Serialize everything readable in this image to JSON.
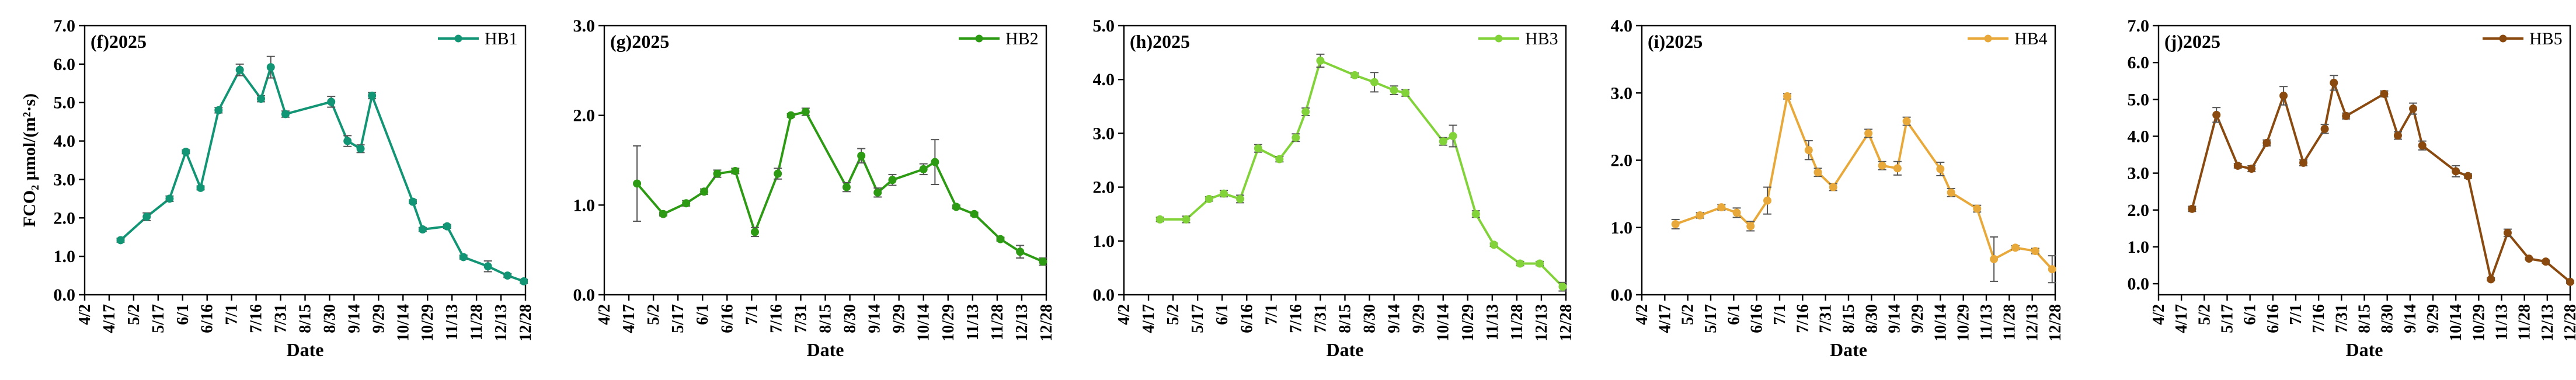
{
  "chart_data": [
    {
      "type": "line",
      "panel_label": "(f)2025",
      "ylabel": "FCO₂ μmol/(m²·s)",
      "xlabel": "Date",
      "x_ticks": [
        "4/2",
        "4/17",
        "5/2",
        "5/17",
        "6/1",
        "6/16",
        "7/1",
        "7/16",
        "7/31",
        "8/15",
        "8/30",
        "9/14",
        "9/29",
        "10/14",
        "10/29",
        "11/13",
        "11/28",
        "12/13",
        "12/28"
      ],
      "ylim": [
        0,
        7
      ],
      "y_ticks": [
        "0.0",
        "1.0",
        "2.0",
        "3.0",
        "4.0",
        "5.0",
        "6.0",
        "7.0"
      ],
      "legend_position": "top-right",
      "series": [
        {
          "name": "HB1",
          "color": "#119574",
          "points": [
            {
              "x": "4/24",
              "y": 1.42,
              "err": 0.05
            },
            {
              "x": "5/10",
              "y": 2.03,
              "err": 0.1
            },
            {
              "x": "5/24",
              "y": 2.5,
              "err": 0.07
            },
            {
              "x": "6/3",
              "y": 3.72,
              "err": 0.05
            },
            {
              "x": "6/12",
              "y": 2.78,
              "err": 0.05
            },
            {
              "x": "6/23",
              "y": 4.8,
              "err": 0.07
            },
            {
              "x": "7/6",
              "y": 5.85,
              "err": 0.15
            },
            {
              "x": "7/19",
              "y": 5.1,
              "err": 0.08
            },
            {
              "x": "7/25",
              "y": 5.92,
              "err": 0.28
            },
            {
              "x": "8/3",
              "y": 4.7,
              "err": 0.08
            },
            {
              "x": "8/31",
              "y": 5.02,
              "err": 0.14
            },
            {
              "x": "9/10",
              "y": 4.0,
              "err": 0.14
            },
            {
              "x": "9/18",
              "y": 3.8,
              "err": 0.1
            },
            {
              "x": "9/25",
              "y": 5.18,
              "err": 0.08
            },
            {
              "x": "10/20",
              "y": 2.42,
              "err": 0.05
            },
            {
              "x": "10/26",
              "y": 1.7,
              "err": 0.05
            },
            {
              "x": "11/10",
              "y": 1.78,
              "err": 0.05
            },
            {
              "x": "11/20",
              "y": 0.98,
              "err": 0.05
            },
            {
              "x": "12/5",
              "y": 0.74,
              "err": 0.14
            },
            {
              "x": "12/17",
              "y": 0.5,
              "err": 0.05
            },
            {
              "x": "12/27",
              "y": 0.35,
              "err": 0.05
            }
          ]
        }
      ]
    },
    {
      "type": "line",
      "panel_label": "(g)2025",
      "xlabel": "Date",
      "x_ticks": [
        "4/2",
        "4/17",
        "5/2",
        "5/17",
        "6/1",
        "6/16",
        "7/1",
        "7/16",
        "7/31",
        "8/15",
        "8/30",
        "9/14",
        "9/29",
        "10/14",
        "10/29",
        "11/13",
        "11/28",
        "12/13",
        "12/28"
      ],
      "ylim": [
        0,
        3
      ],
      "y_ticks": [
        "0.0",
        "1.0",
        "2.0",
        "3.0"
      ],
      "legend_position": "top-right",
      "series": [
        {
          "name": "HB2",
          "color": "#2c9a12",
          "points": [
            {
              "x": "4/22",
              "y": 1.24,
              "err": 0.42
            },
            {
              "x": "5/8",
              "y": 0.9,
              "err": 0.02
            },
            {
              "x": "5/22",
              "y": 1.02,
              "err": 0.03
            },
            {
              "x": "6/2",
              "y": 1.15,
              "err": 0.03
            },
            {
              "x": "6/10",
              "y": 1.35,
              "err": 0.04
            },
            {
              "x": "6/21",
              "y": 1.38,
              "err": 0.03
            },
            {
              "x": "7/3",
              "y": 0.7,
              "err": 0.05
            },
            {
              "x": "7/17",
              "y": 1.35,
              "err": 0.06
            },
            {
              "x": "7/25",
              "y": 2.0,
              "err": 0.02
            },
            {
              "x": "8/3",
              "y": 2.04,
              "err": 0.04
            },
            {
              "x": "8/28",
              "y": 1.2,
              "err": 0.05
            },
            {
              "x": "9/6",
              "y": 1.55,
              "err": 0.08
            },
            {
              "x": "9/16",
              "y": 1.14,
              "err": 0.05
            },
            {
              "x": "9/25",
              "y": 1.28,
              "err": 0.06
            },
            {
              "x": "10/14",
              "y": 1.4,
              "err": 0.06
            },
            {
              "x": "10/21",
              "y": 1.48,
              "err": 0.25
            },
            {
              "x": "11/3",
              "y": 0.98,
              "err": 0.02
            },
            {
              "x": "11/14",
              "y": 0.9,
              "err": 0.02
            },
            {
              "x": "11/30",
              "y": 0.62,
              "err": 0.02
            },
            {
              "x": "12/12",
              "y": 0.48,
              "err": 0.07
            },
            {
              "x": "12/26",
              "y": 0.37,
              "err": 0.04
            }
          ]
        }
      ]
    },
    {
      "type": "line",
      "panel_label": "(h)2025",
      "xlabel": "Date",
      "x_ticks": [
        "4/2",
        "4/17",
        "5/2",
        "5/17",
        "6/1",
        "6/16",
        "7/1",
        "7/16",
        "7/31",
        "8/15",
        "8/30",
        "9/14",
        "9/29",
        "10/14",
        "10/29",
        "11/13",
        "11/28",
        "12/13",
        "12/28"
      ],
      "ylim": [
        0,
        5
      ],
      "y_ticks": [
        "0.0",
        "1.0",
        "2.0",
        "3.0",
        "4.0",
        "5.0"
      ],
      "legend_position": "top-right",
      "series": [
        {
          "name": "HB3",
          "color": "#82d33a",
          "points": [
            {
              "x": "4/24",
              "y": 1.4,
              "err": 0.04
            },
            {
              "x": "5/10",
              "y": 1.4,
              "err": 0.06
            },
            {
              "x": "5/24",
              "y": 1.78,
              "err": 0.04
            },
            {
              "x": "6/2",
              "y": 1.88,
              "err": 0.06
            },
            {
              "x": "6/12",
              "y": 1.78,
              "err": 0.07
            },
            {
              "x": "6/23",
              "y": 2.72,
              "err": 0.07
            },
            {
              "x": "7/6",
              "y": 2.52,
              "err": 0.05
            },
            {
              "x": "7/16",
              "y": 2.92,
              "err": 0.07
            },
            {
              "x": "7/22",
              "y": 3.4,
              "err": 0.07
            },
            {
              "x": "7/31",
              "y": 4.35,
              "err": 0.12
            },
            {
              "x": "8/21",
              "y": 4.08,
              "err": 0.04
            },
            {
              "x": "9/2",
              "y": 3.95,
              "err": 0.18
            },
            {
              "x": "9/14",
              "y": 3.8,
              "err": 0.08
            },
            {
              "x": "9/21",
              "y": 3.75,
              "err": 0.06
            },
            {
              "x": "10/14",
              "y": 2.85,
              "err": 0.07
            },
            {
              "x": "10/20",
              "y": 2.95,
              "err": 0.2
            },
            {
              "x": "11/3",
              "y": 1.5,
              "err": 0.06
            },
            {
              "x": "11/14",
              "y": 0.93,
              "err": 0.03
            },
            {
              "x": "11/30",
              "y": 0.58,
              "err": 0.04
            },
            {
              "x": "12/12",
              "y": 0.58,
              "err": 0.04
            },
            {
              "x": "12/26",
              "y": 0.15,
              "err": 0.08
            }
          ]
        }
      ]
    },
    {
      "type": "line",
      "panel_label": "(i)2025",
      "xlabel": "Date",
      "x_ticks": [
        "4/2",
        "4/17",
        "5/2",
        "5/17",
        "6/1",
        "6/16",
        "7/1",
        "7/16",
        "7/31",
        "8/15",
        "8/30",
        "9/14",
        "9/29",
        "10/14",
        "10/29",
        "11/13",
        "11/28",
        "12/13",
        "12/28"
      ],
      "ylim": [
        0,
        4
      ],
      "y_ticks": [
        "0.0",
        "1.0",
        "2.0",
        "3.0",
        "4.0"
      ],
      "legend_position": "top-right",
      "series": [
        {
          "name": "HB4",
          "color": "#e8a93a",
          "points": [
            {
              "x": "4/24",
              "y": 1.05,
              "err": 0.07
            },
            {
              "x": "5/10",
              "y": 1.18,
              "err": 0.04
            },
            {
              "x": "5/24",
              "y": 1.3,
              "err": 0.04
            },
            {
              "x": "6/3",
              "y": 1.22,
              "err": 0.07
            },
            {
              "x": "6/12",
              "y": 1.02,
              "err": 0.07
            },
            {
              "x": "6/23",
              "y": 1.4,
              "err": 0.2
            },
            {
              "x": "7/6",
              "y": 2.95,
              "err": 0.04
            },
            {
              "x": "7/20",
              "y": 2.15,
              "err": 0.14
            },
            {
              "x": "7/26",
              "y": 1.82,
              "err": 0.06
            },
            {
              "x": "8/5",
              "y": 1.6,
              "err": 0.05
            },
            {
              "x": "8/28",
              "y": 2.4,
              "err": 0.06
            },
            {
              "x": "9/6",
              "y": 1.92,
              "err": 0.06
            },
            {
              "x": "9/16",
              "y": 1.88,
              "err": 0.1
            },
            {
              "x": "9/22",
              "y": 2.58,
              "err": 0.06
            },
            {
              "x": "10/14",
              "y": 1.87,
              "err": 0.1
            },
            {
              "x": "10/21",
              "y": 1.52,
              "err": 0.06
            },
            {
              "x": "11/7",
              "y": 1.28,
              "err": 0.05
            },
            {
              "x": "11/18",
              "y": 0.53,
              "err": 0.33
            },
            {
              "x": "12/2",
              "y": 0.7,
              "err": 0.03
            },
            {
              "x": "12/15",
              "y": 0.65,
              "err": 0.04
            },
            {
              "x": "12/26",
              "y": 0.38,
              "err": 0.2
            }
          ]
        }
      ]
    },
    {
      "type": "line",
      "panel_label": "(j)2025",
      "xlabel": "Date",
      "x_ticks": [
        "4/2",
        "4/17",
        "5/2",
        "5/17",
        "6/1",
        "6/16",
        "7/1",
        "7/16",
        "7/31",
        "8/15",
        "8/30",
        "9/14",
        "9/29",
        "10/14",
        "10/29",
        "11/13",
        "11/28",
        "12/13",
        "12/28"
      ],
      "ylim": [
        -0.3,
        7
      ],
      "y_ticks": [
        "0.0",
        "1.0",
        "2.0",
        "3.0",
        "4.0",
        "5.0",
        "6.0",
        "7.0"
      ],
      "legend_position": "top-right",
      "series": [
        {
          "name": "HB5",
          "color": "#8a4a0f",
          "points": [
            {
              "x": "4/24",
              "y": 2.03,
              "err": 0.07
            },
            {
              "x": "5/10",
              "y": 4.58,
              "err": 0.2
            },
            {
              "x": "5/24",
              "y": 3.2,
              "err": 0.06
            },
            {
              "x": "6/2",
              "y": 3.12,
              "err": 0.08
            },
            {
              "x": "6/12",
              "y": 3.82,
              "err": 0.08
            },
            {
              "x": "6/23",
              "y": 5.1,
              "err": 0.25
            },
            {
              "x": "7/6",
              "y": 3.28,
              "err": 0.08
            },
            {
              "x": "7/20",
              "y": 4.2,
              "err": 0.12
            },
            {
              "x": "7/26",
              "y": 5.45,
              "err": 0.2
            },
            {
              "x": "8/3",
              "y": 4.55,
              "err": 0.08
            },
            {
              "x": "8/28",
              "y": 5.15,
              "err": 0.08
            },
            {
              "x": "9/6",
              "y": 4.02,
              "err": 0.1
            },
            {
              "x": "9/16",
              "y": 4.75,
              "err": 0.15
            },
            {
              "x": "9/22",
              "y": 3.75,
              "err": 0.12
            },
            {
              "x": "10/14",
              "y": 3.05,
              "err": 0.15
            },
            {
              "x": "10/22",
              "y": 2.92,
              "err": 0.06
            },
            {
              "x": "11/6",
              "y": 0.12,
              "err": 0.04
            },
            {
              "x": "11/17",
              "y": 1.38,
              "err": 0.1
            },
            {
              "x": "12/1",
              "y": 0.68,
              "err": 0.03
            },
            {
              "x": "12/12",
              "y": 0.6,
              "err": 0.04
            },
            {
              "x": "12/28",
              "y": 0.05,
              "err": 0.04
            }
          ]
        }
      ]
    }
  ]
}
